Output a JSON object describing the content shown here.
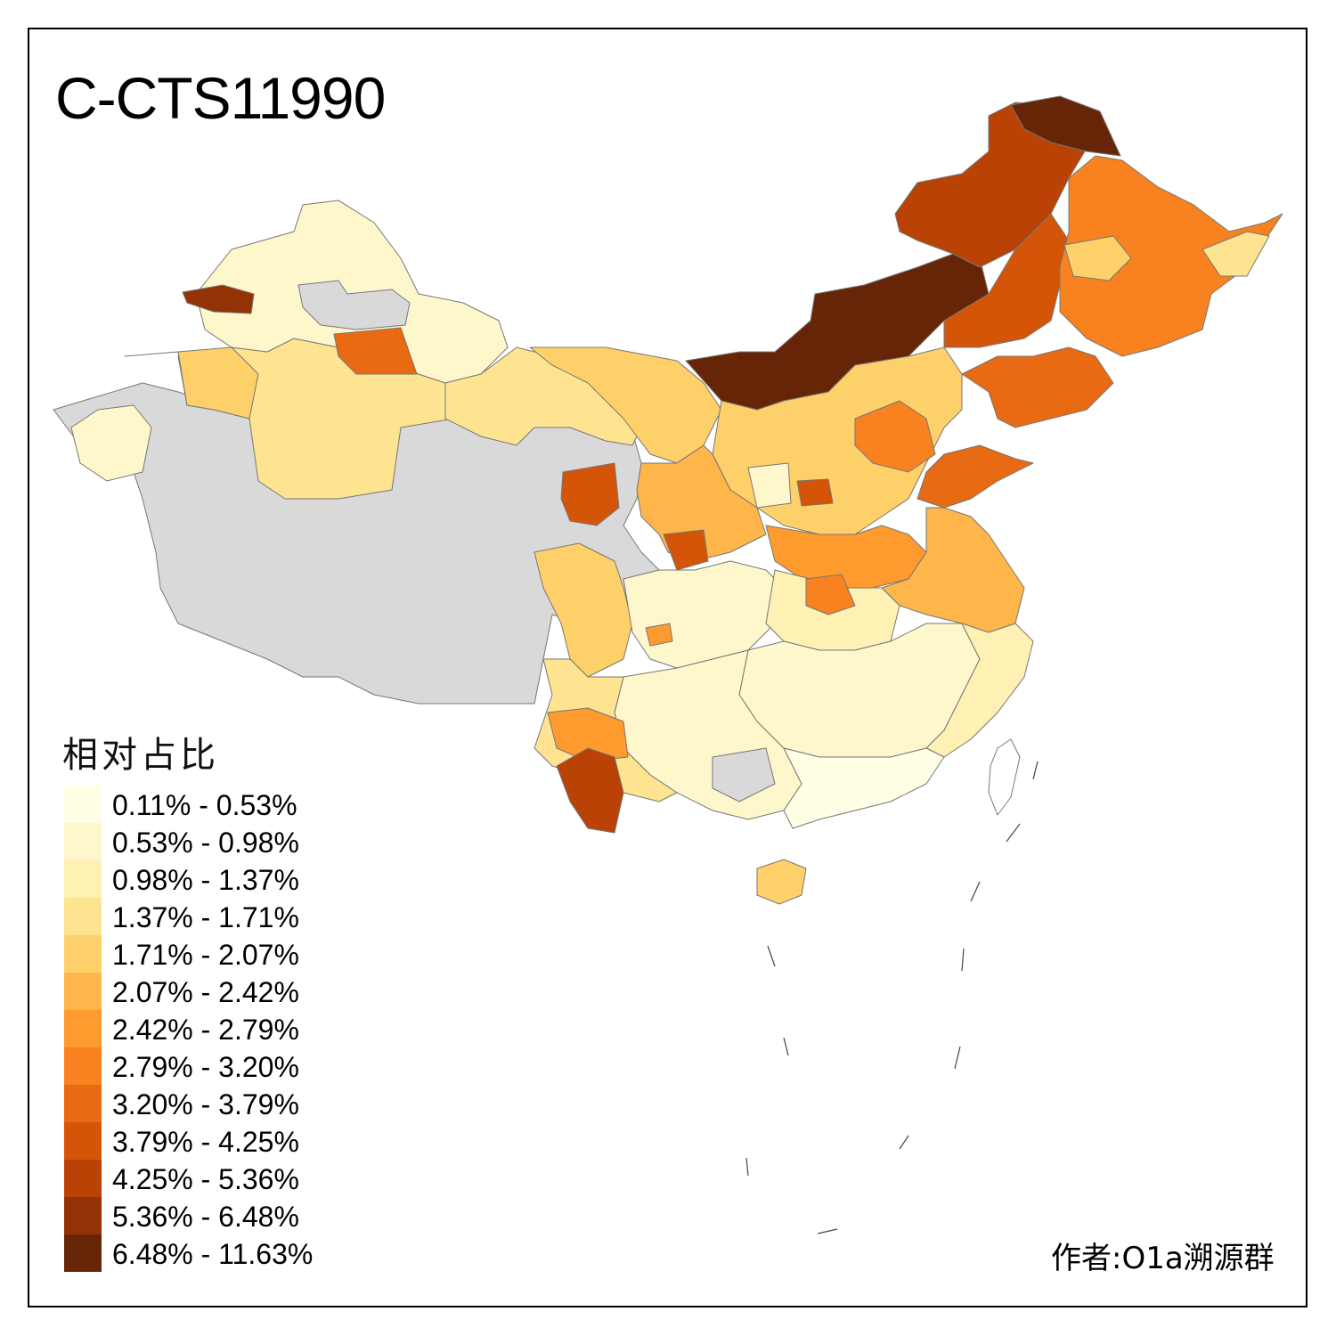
{
  "map": {
    "title": "C-CTS11990",
    "legend_title": "相对占比",
    "author": "作者:O1a溯源群",
    "no_data_color": "#d9d9d9",
    "legend": [
      {
        "label": "0.11% - 0.53%",
        "color": "#ffffe5"
      },
      {
        "label": "0.53% - 0.98%",
        "color": "#fff7cc"
      },
      {
        "label": "0.98% - 1.37%",
        "color": "#fff0b3"
      },
      {
        "label": "1.37% - 1.71%",
        "color": "#fee391"
      },
      {
        "label": "1.71% - 2.07%",
        "color": "#fed06a"
      },
      {
        "label": "2.07% - 2.42%",
        "color": "#feb54a"
      },
      {
        "label": "2.42% - 2.79%",
        "color": "#fe9a2e"
      },
      {
        "label": "2.79% - 3.20%",
        "color": "#f7821f"
      },
      {
        "label": "3.20% - 3.79%",
        "color": "#e86a12"
      },
      {
        "label": "3.79% - 4.25%",
        "color": "#d45508"
      },
      {
        "label": "4.25% - 5.36%",
        "color": "#b94204"
      },
      {
        "label": "5.36% - 6.48%",
        "color": "#933204"
      },
      {
        "label": "6.48% - 11.63%",
        "color": "#662506"
      }
    ]
  }
}
